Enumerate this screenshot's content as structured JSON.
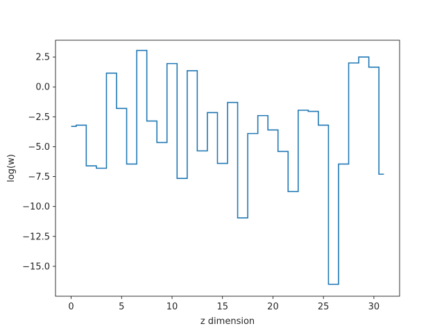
{
  "chart_data": {
    "type": "line",
    "drawstyle": "steps-mid",
    "title": "",
    "xlabel": "z dimension",
    "ylabel": "log(w)",
    "xlim": [
      -1.55,
      32.55
    ],
    "ylim": [
      -17.5,
      3.9
    ],
    "xticks": [
      0,
      5,
      10,
      15,
      20,
      25,
      30
    ],
    "xtick_labels": [
      "0",
      "5",
      "10",
      "15",
      "20",
      "25",
      "30"
    ],
    "yticks": [
      2.5,
      0.0,
      -2.5,
      -5.0,
      -7.5,
      -10.0,
      -12.5,
      -15.0
    ],
    "ytick_labels": [
      "2.5",
      "0.0",
      "−2.5",
      "−5.0",
      "−7.5",
      "−10.0",
      "−12.5",
      "−15.0"
    ],
    "grid": false,
    "legend": "none",
    "colors": {
      "line": "#1f77b4",
      "axes": "#000000",
      "text": "#262626",
      "background": "#ffffff"
    },
    "series": [
      {
        "x": [
          0,
          1,
          2,
          3,
          4,
          5,
          6,
          7,
          8,
          9,
          10,
          11,
          12,
          13,
          14,
          15,
          16,
          17,
          18,
          19,
          20,
          21,
          22,
          23,
          24,
          25,
          26,
          27,
          28,
          29,
          30,
          31
        ],
        "values": [
          -3.3,
          -3.2,
          -6.6,
          -6.8,
          1.15,
          -1.8,
          -6.45,
          3.05,
          -2.85,
          -4.65,
          1.95,
          -7.65,
          1.35,
          -5.35,
          -2.15,
          -6.4,
          -1.3,
          -10.95,
          -3.9,
          -2.4,
          -3.6,
          -5.4,
          -8.75,
          -1.95,
          -2.05,
          -3.2,
          -16.5,
          -6.45,
          2.0,
          2.5,
          1.65,
          -7.3
        ]
      }
    ]
  }
}
